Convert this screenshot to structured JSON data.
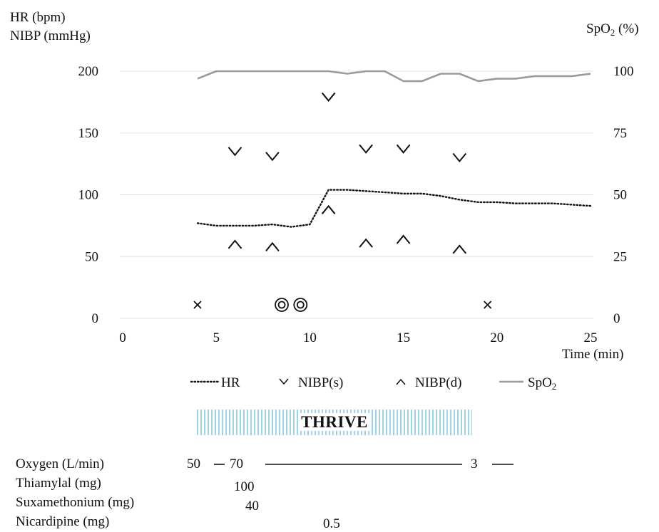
{
  "chart_data": {
    "type": "line",
    "title": "",
    "y_left_label_lines": [
      "HR (bpm)",
      "NIBP (mmHg)"
    ],
    "y_right_label_prefix": "SpO",
    "y_right_label_sub": "2",
    "y_right_label_suffix": " (%)",
    "xlabel": "Time (min)",
    "xlim": [
      0,
      25
    ],
    "ylim_left": [
      0,
      200
    ],
    "ylim_right": [
      0,
      100
    ],
    "x_ticks": [
      0,
      5,
      10,
      15,
      20,
      25
    ],
    "y_left_ticks": [
      0,
      50,
      100,
      150,
      200
    ],
    "y_right_ticks": [
      0,
      25,
      50,
      75,
      100
    ],
    "grid": true,
    "legend_position": "bottom",
    "colors": {
      "hr": "#111111",
      "nibp": "#111111",
      "spo2": "#9a9a9a",
      "grid": "#e3e3e3",
      "thrive": "#9fd3e8"
    },
    "series": [
      {
        "key": "hr",
        "name": "HR",
        "style": "dotted",
        "axis": "left",
        "x": [
          4,
          5,
          6,
          7,
          8,
          9,
          10,
          11,
          12,
          13,
          14,
          15,
          16,
          17,
          18,
          19,
          20,
          21,
          22,
          23,
          24,
          25
        ],
        "values": [
          77,
          75,
          75,
          75,
          76,
          74,
          76,
          104,
          104,
          103,
          102,
          101,
          101,
          99,
          96,
          94,
          94,
          93,
          93,
          93,
          92,
          91
        ]
      },
      {
        "key": "nibp_s",
        "name": "NIBP(s)",
        "marker": "v",
        "axis": "left",
        "x": [
          6,
          8,
          11,
          13,
          15,
          18
        ],
        "values": [
          135,
          131,
          179,
          137,
          137,
          130
        ]
      },
      {
        "key": "nibp_d",
        "name": "NIBP(d)",
        "marker": "^",
        "axis": "left",
        "x": [
          6,
          8,
          11,
          13,
          15,
          18
        ],
        "values": [
          60,
          58,
          88,
          61,
          64,
          56
        ]
      },
      {
        "key": "spo2",
        "name_prefix": "SpO",
        "name_sub": "2",
        "style": "solid",
        "axis": "right",
        "x": [
          4,
          5,
          6,
          7,
          8,
          9,
          10,
          11,
          12,
          13,
          14,
          15,
          16,
          17,
          18,
          19,
          20,
          21,
          22,
          23,
          24,
          25
        ],
        "values": [
          97,
          100,
          100,
          100,
          100,
          100,
          100,
          100,
          99,
          100,
          100,
          96,
          96,
          99,
          99,
          96,
          97,
          97,
          98,
          98,
          98,
          99
        ]
      }
    ],
    "markers": [
      {
        "symbol": "×",
        "x": 4
      },
      {
        "symbol": "◎",
        "x": 8.5
      },
      {
        "symbol": "◎",
        "x": 9.5
      },
      {
        "symbol": "×",
        "x": 19.5
      }
    ],
    "thrive_label": "THRIVE",
    "thrive_range": [
      4,
      19
    ]
  },
  "drug_rows": [
    {
      "label": "Oxygen (L/min)"
    },
    {
      "label": "Thiamylal (mg)"
    },
    {
      "label": "Suxamethonium (mg)"
    },
    {
      "label": "Nicardipine (mg)"
    }
  ],
  "oxygen_values": [
    "50",
    "70",
    "3"
  ],
  "drug_doses": {
    "thiamylal": "100",
    "suxamethonium": "40",
    "nicardipine": "0.5"
  }
}
